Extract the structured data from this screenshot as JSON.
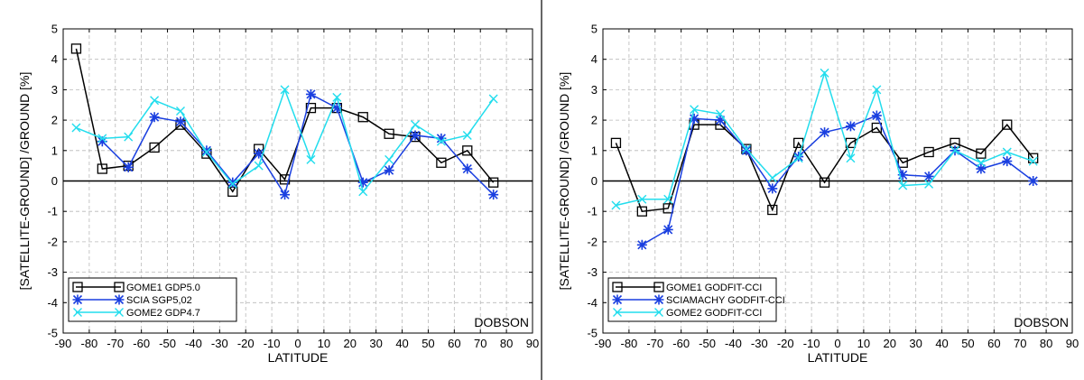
{
  "chart_data": [
    {
      "type": "line",
      "xlabel": "LATITUDE",
      "ylabel": "[SATELLITE-GROUND] /GROUND  [%]",
      "xlim": [
        -90,
        90
      ],
      "ylim": [
        -5,
        5
      ],
      "xticks": [
        -90,
        -80,
        -70,
        -60,
        -50,
        -40,
        -30,
        -20,
        -10,
        0,
        10,
        20,
        30,
        40,
        50,
        60,
        70,
        80,
        90
      ],
      "yticks": [
        -5,
        -4,
        -3,
        -2,
        -1,
        0,
        1,
        2,
        3,
        4,
        5
      ],
      "grid": true,
      "legend_position": "bottom-left",
      "annotation": "DOBSON",
      "series": [
        {
          "name": "GOME1 GDP5.0",
          "color": "#000000",
          "marker": "square",
          "x": [
            -85,
            -75,
            -65,
            -55,
            -45,
            -35,
            -25,
            -15,
            -5,
            5,
            15,
            25,
            35,
            45,
            55,
            65,
            75
          ],
          "y": [
            4.35,
            0.4,
            0.5,
            1.1,
            1.85,
            0.9,
            -0.35,
            1.05,
            0.05,
            2.4,
            2.4,
            2.1,
            1.55,
            1.45,
            0.6,
            1.0,
            -0.05
          ]
        },
        {
          "name": "SCIA SGP5,02",
          "color": "#1a3fe0",
          "marker": "star",
          "x": [
            -75,
            -65,
            -55,
            -45,
            -35,
            -25,
            -15,
            -5,
            5,
            15,
            25,
            35,
            45,
            55,
            65,
            75
          ],
          "y": [
            1.3,
            0.45,
            2.1,
            1.95,
            1.0,
            -0.05,
            0.9,
            -0.45,
            2.85,
            2.4,
            -0.05,
            0.35,
            1.5,
            1.4,
            0.4,
            -0.45
          ]
        },
        {
          "name": "GOME2 GDP4.7",
          "color": "#22dded",
          "marker": "x",
          "x": [
            -85,
            -75,
            -65,
            -55,
            -45,
            -35,
            -25,
            -15,
            -5,
            5,
            15,
            25,
            35,
            45,
            55,
            65,
            75
          ],
          "y": [
            1.75,
            1.4,
            1.45,
            2.65,
            2.3,
            0.95,
            -0.1,
            0.5,
            3.0,
            0.7,
            2.75,
            -0.35,
            0.7,
            1.85,
            1.3,
            1.5,
            2.7
          ]
        }
      ]
    },
    {
      "type": "line",
      "xlabel": "LATITUDE",
      "ylabel": "[SATELLITE-GROUND] /GROUND  [%]",
      "xlim": [
        -90,
        90
      ],
      "ylim": [
        -5,
        5
      ],
      "xticks": [
        -90,
        -80,
        -70,
        -60,
        -50,
        -40,
        -30,
        -20,
        -10,
        0,
        10,
        20,
        30,
        40,
        50,
        60,
        70,
        80,
        90
      ],
      "yticks": [
        -5,
        -4,
        -3,
        -2,
        -1,
        0,
        1,
        2,
        3,
        4,
        5
      ],
      "grid": true,
      "legend_position": "bottom-left",
      "annotation": "DOBSON",
      "series": [
        {
          "name": "GOME1 GODFIT-CCI",
          "color": "#000000",
          "marker": "square",
          "x": [
            -85,
            -75,
            -65,
            -55,
            -45,
            -35,
            -25,
            -15,
            -5,
            5,
            15,
            25,
            35,
            45,
            55,
            65,
            75
          ],
          "y": [
            1.25,
            -1.0,
            -0.9,
            1.85,
            1.85,
            1.05,
            -0.95,
            1.25,
            -0.05,
            1.25,
            1.75,
            0.6,
            0.95,
            1.25,
            0.9,
            1.85,
            0.75
          ]
        },
        {
          "name": "SCIAMACHY GODFIT-CCI",
          "color": "#1a3fe0",
          "marker": "star",
          "x": [
            -75,
            -65,
            -55,
            -45,
            -35,
            -25,
            -15,
            -5,
            5,
            15,
            25,
            35,
            45,
            55,
            65,
            75
          ],
          "y": [
            -2.1,
            -1.6,
            2.05,
            2.0,
            1.0,
            -0.25,
            0.8,
            1.6,
            1.8,
            2.15,
            0.2,
            0.15,
            1.0,
            0.4,
            0.65,
            0.0
          ]
        },
        {
          "name": "GOME2 GODFIT-CCI",
          "color": "#22dded",
          "marker": "x",
          "x": [
            -85,
            -75,
            -65,
            -55,
            -45,
            -35,
            -25,
            -15,
            -5,
            5,
            15,
            25,
            35,
            45,
            55,
            65,
            75
          ],
          "y": [
            -0.8,
            -0.6,
            -0.6,
            2.35,
            2.2,
            1.05,
            0.1,
            0.75,
            3.55,
            0.75,
            3.0,
            -0.15,
            -0.1,
            1.0,
            0.6,
            0.95,
            0.65
          ]
        }
      ]
    }
  ]
}
